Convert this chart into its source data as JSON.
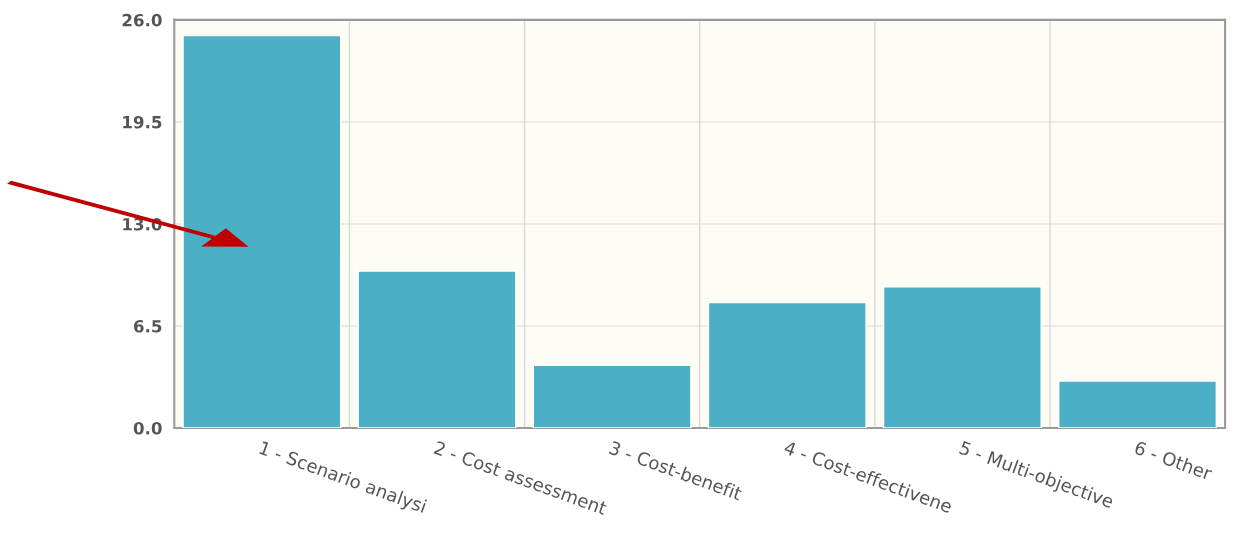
{
  "chart_data": {
    "type": "bar",
    "categories": [
      "1 - Scenario analysi",
      "2 - Cost assessment",
      "3 - Cost-benefit",
      "4 - Cost-effectivene",
      "5 - Multi-objective",
      "6 - Other"
    ],
    "values": [
      25,
      10,
      4,
      8,
      9,
      3
    ],
    "color": "#4bb0c6",
    "ylim": [
      0,
      26
    ],
    "yticks": [
      {
        "value": 0,
        "label": "0.0"
      },
      {
        "value": 6.5,
        "label": "6.5"
      },
      {
        "value": 13,
        "label": "13.0"
      },
      {
        "value": 19.5,
        "label": "19.5"
      },
      {
        "value": 26,
        "label": "26.0"
      }
    ],
    "grid": true
  }
}
